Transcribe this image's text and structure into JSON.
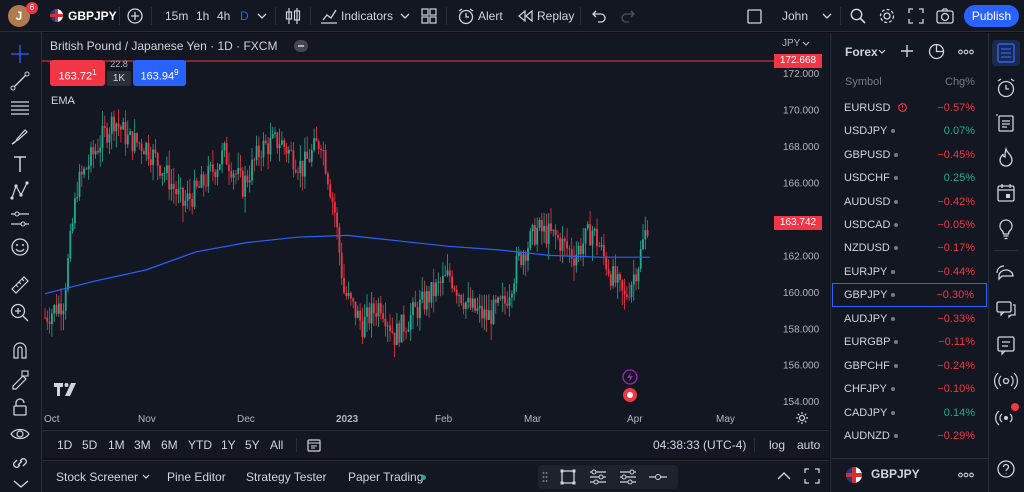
{
  "header": {
    "avatar_letter": "J",
    "avatar_badge": "6",
    "symbol": "GBPJPY",
    "intervals": [
      "15m",
      "1h",
      "4h",
      "D"
    ],
    "indicators_label": "Indicators",
    "alert_label": "Alert",
    "replay_label": "Replay",
    "layout_name": "John",
    "publish_label": "Publish"
  },
  "chart": {
    "title": "British Pound / Japanese Yen · 1D · FXCM",
    "sell_price": "163.72",
    "sell_sup": "1",
    "buy_price": "163.94",
    "buy_sup": "9",
    "spread": "22.8",
    "quantity": "1K",
    "ema_label": "EMA",
    "currency": "JPY",
    "price_axis": [
      "172.000",
      "170.000",
      "168.000",
      "166.000",
      "164.000",
      "162.000",
      "160.000",
      "158.000",
      "156.000",
      "154.000"
    ],
    "alert_line_price": "172.668",
    "last_price": "163.742",
    "time_axis": [
      "Oct",
      "Nov",
      "Dec",
      "2023",
      "Feb",
      "Mar",
      "Apr",
      "May"
    ],
    "colors": {
      "up": "#22ab94",
      "down": "#f23645",
      "ema": "#2962ff",
      "alert": "#f23645"
    }
  },
  "chart_data": {
    "type": "candlestick",
    "symbol": "GBPJPY",
    "interval": "1D",
    "y_range": [
      153.5,
      174
    ],
    "x_ticks": [
      "Oct",
      "Nov",
      "Dec",
      "2023",
      "Feb",
      "Mar",
      "Apr",
      "May"
    ],
    "ema_points": [
      [
        0,
        159.9
      ],
      [
        20,
        160.6
      ],
      [
        40,
        161.2
      ],
      [
        60,
        162.2
      ],
      [
        80,
        162.7
      ],
      [
        100,
        163.0
      ],
      [
        120,
        163.1
      ],
      [
        140,
        162.8
      ],
      [
        160,
        162.5
      ],
      [
        180,
        162.3
      ],
      [
        200,
        162.0
      ],
      [
        220,
        161.9
      ],
      [
        240,
        161.9
      ]
    ],
    "last_price": 163.742,
    "alert_price": 172.668
  },
  "periods": {
    "ranges": [
      "1D",
      "5D",
      "1M",
      "3M",
      "6M",
      "YTD",
      "1Y",
      "5Y",
      "All"
    ],
    "clock": "04:38:33 (UTC-4)",
    "log_label": "log",
    "auto_label": "auto"
  },
  "bottom": {
    "tabs": [
      "Stock Screener",
      "Pine Editor",
      "Strategy Tester",
      "Paper Trading"
    ]
  },
  "watchlist": {
    "title": "Forex",
    "col_symbol": "Symbol",
    "col_change": "Chg%",
    "rows": [
      {
        "symbol": "EURUSD",
        "change": "−0.57%",
        "dir": "neg"
      },
      {
        "symbol": "USDJPY",
        "change": "0.07%",
        "dir": "pos"
      },
      {
        "symbol": "GBPUSD",
        "change": "−0.45%",
        "dir": "neg"
      },
      {
        "symbol": "USDCHF",
        "change": "0.25%",
        "dir": "pos"
      },
      {
        "symbol": "AUDUSD",
        "change": "−0.42%",
        "dir": "neg"
      },
      {
        "symbol": "USDCAD",
        "change": "−0.05%",
        "dir": "neg"
      },
      {
        "symbol": "NZDUSD",
        "change": "−0.17%",
        "dir": "neg"
      },
      {
        "symbol": "EURJPY",
        "change": "−0.44%",
        "dir": "neg"
      },
      {
        "symbol": "GBPJPY",
        "change": "−0.30%",
        "dir": "neg"
      },
      {
        "symbol": "AUDJPY",
        "change": "−0.33%",
        "dir": "neg"
      },
      {
        "symbol": "EURGBP",
        "change": "−0.11%",
        "dir": "neg"
      },
      {
        "symbol": "GBPCHF",
        "change": "−0.24%",
        "dir": "neg"
      },
      {
        "symbol": "CHFJPY",
        "change": "−0.10%",
        "dir": "neg"
      },
      {
        "symbol": "CADJPY",
        "change": "0.14%",
        "dir": "pos"
      },
      {
        "symbol": "AUDNZD",
        "change": "−0.29%",
        "dir": "neg"
      }
    ],
    "footer_symbol": "GBPJPY"
  }
}
